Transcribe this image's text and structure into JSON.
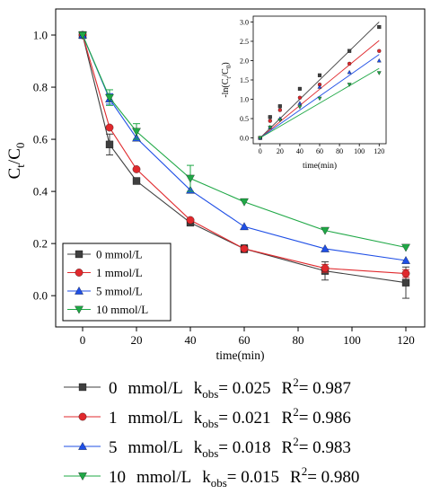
{
  "chart_data": [
    {
      "type": "line",
      "ylabel_main": "C",
      "ylabel_sub1": "t",
      "ylabel_mid": "/C",
      "ylabel_sub2": "0",
      "xlabel": "time(min)",
      "xlim": [
        -10,
        127
      ],
      "ylim": [
        -0.12,
        1.1
      ],
      "xticks": [
        0,
        20,
        40,
        60,
        80,
        100,
        120
      ],
      "yticks": [
        0.0,
        0.2,
        0.4,
        0.6,
        0.8,
        1.0
      ],
      "ytick_labels": [
        "0.0",
        "0.2",
        "0.4",
        "0.6",
        "0.8",
        "1.0"
      ],
      "legend_position": "bottom-left",
      "x": [
        0,
        10,
        20,
        40,
        60,
        90,
        120
      ],
      "series": [
        {
          "name": "0 mmol/L",
          "color": "#3f3f3f",
          "marker": "square",
          "values": [
            1.0,
            0.58,
            0.44,
            0.28,
            0.18,
            0.095,
            0.05
          ],
          "errors": [
            0.01,
            0.04,
            0.01,
            0.01,
            0.015,
            0.035,
            0.06
          ]
        },
        {
          "name": "1 mmol/L",
          "color": "#e0292d",
          "marker": "circle",
          "values": [
            1.0,
            0.645,
            0.485,
            0.29,
            0.18,
            0.105,
            0.085
          ],
          "errors": [
            0.01,
            0.01,
            0.01,
            0.01,
            0.01,
            0.015,
            0.015
          ]
        },
        {
          "name": "5 mmol/L",
          "color": "#1f4fe6",
          "marker": "triangle-up",
          "values": [
            1.0,
            0.755,
            0.605,
            0.405,
            0.265,
            0.18,
            0.135
          ],
          "errors": [
            0.01,
            0.02,
            0.01,
            0.01,
            0.01,
            0.01,
            0.01
          ]
        },
        {
          "name": "10 mmol/L",
          "color": "#1fa846",
          "marker": "triangle-down",
          "values": [
            1.0,
            0.76,
            0.63,
            0.45,
            0.36,
            0.25,
            0.185
          ],
          "errors": [
            0.01,
            0.03,
            0.03,
            0.05,
            0.01,
            0.01,
            0.01
          ]
        }
      ]
    },
    {
      "type": "scatter",
      "ylabel": "-ln(Cₘ/C₀)",
      "ylabel_main": "-ln(C",
      "ylabel_sub1": "t",
      "ylabel_mid": "/C",
      "ylabel_sub2": "0",
      "ylabel_end": ")",
      "xlabel": "time(min)",
      "xlim": [
        -7,
        127
      ],
      "ylim": [
        -0.15,
        3.15
      ],
      "xticks": [
        0,
        20,
        40,
        60,
        80,
        100,
        120
      ],
      "yticks": [
        0.0,
        0.5,
        1.0,
        1.5,
        2.0,
        2.5,
        3.0
      ],
      "ytick_labels": [
        "0.0",
        "0.5",
        "1.0",
        "1.5",
        "2.0",
        "2.5",
        "3.0"
      ],
      "x": [
        0,
        10,
        20,
        40,
        60,
        90,
        120
      ],
      "series": [
        {
          "name": "0 mmol/L",
          "color": "#3f3f3f",
          "marker": "square",
          "slope": 0.025,
          "values": [
            0.0,
            0.54,
            0.82,
            1.27,
            1.62,
            2.25,
            2.87
          ]
        },
        {
          "name": "1 mmol/L",
          "color": "#e0292d",
          "marker": "circle",
          "slope": 0.021,
          "values": [
            0.0,
            0.44,
            0.72,
            1.04,
            1.38,
            1.92,
            2.25
          ]
        },
        {
          "name": "5 mmol/L",
          "color": "#1f4fe6",
          "marker": "triangle-up",
          "slope": 0.018,
          "values": [
            0.0,
            0.28,
            0.5,
            0.9,
            1.32,
            1.7,
            2.0
          ]
        },
        {
          "name": "10 mmol/L",
          "color": "#1fa846",
          "marker": "triangle-down",
          "slope": 0.015,
          "values": [
            0.0,
            0.27,
            0.46,
            0.8,
            1.02,
            1.38,
            1.68
          ]
        }
      ]
    }
  ],
  "fit_legend": [
    {
      "conc": "0",
      "unit": "mmol/L",
      "k_label": "k",
      "k_sub": "obs",
      "k_value": "= 0.025",
      "r2_label": "R",
      "r2_sup": "2",
      "r2_value": "= 0.987"
    },
    {
      "conc": "1",
      "unit": "mmol/L",
      "k_label": "k",
      "k_sub": "obs",
      "k_value": "= 0.021",
      "r2_label": "R",
      "r2_sup": "2",
      "r2_value": "= 0.986"
    },
    {
      "conc": "5",
      "unit": "mmol/L",
      "k_label": "k",
      "k_sub": "obs",
      "k_value": "= 0.018",
      "r2_label": "R",
      "r2_sup": "2",
      "r2_value": "= 0.983"
    },
    {
      "conc": "10",
      "unit": "mmol/L",
      "k_label": "k",
      "k_sub": "obs",
      "k_value": "= 0.015",
      "r2_label": "R",
      "r2_sup": "2",
      "r2_value": "= 0.980"
    }
  ]
}
